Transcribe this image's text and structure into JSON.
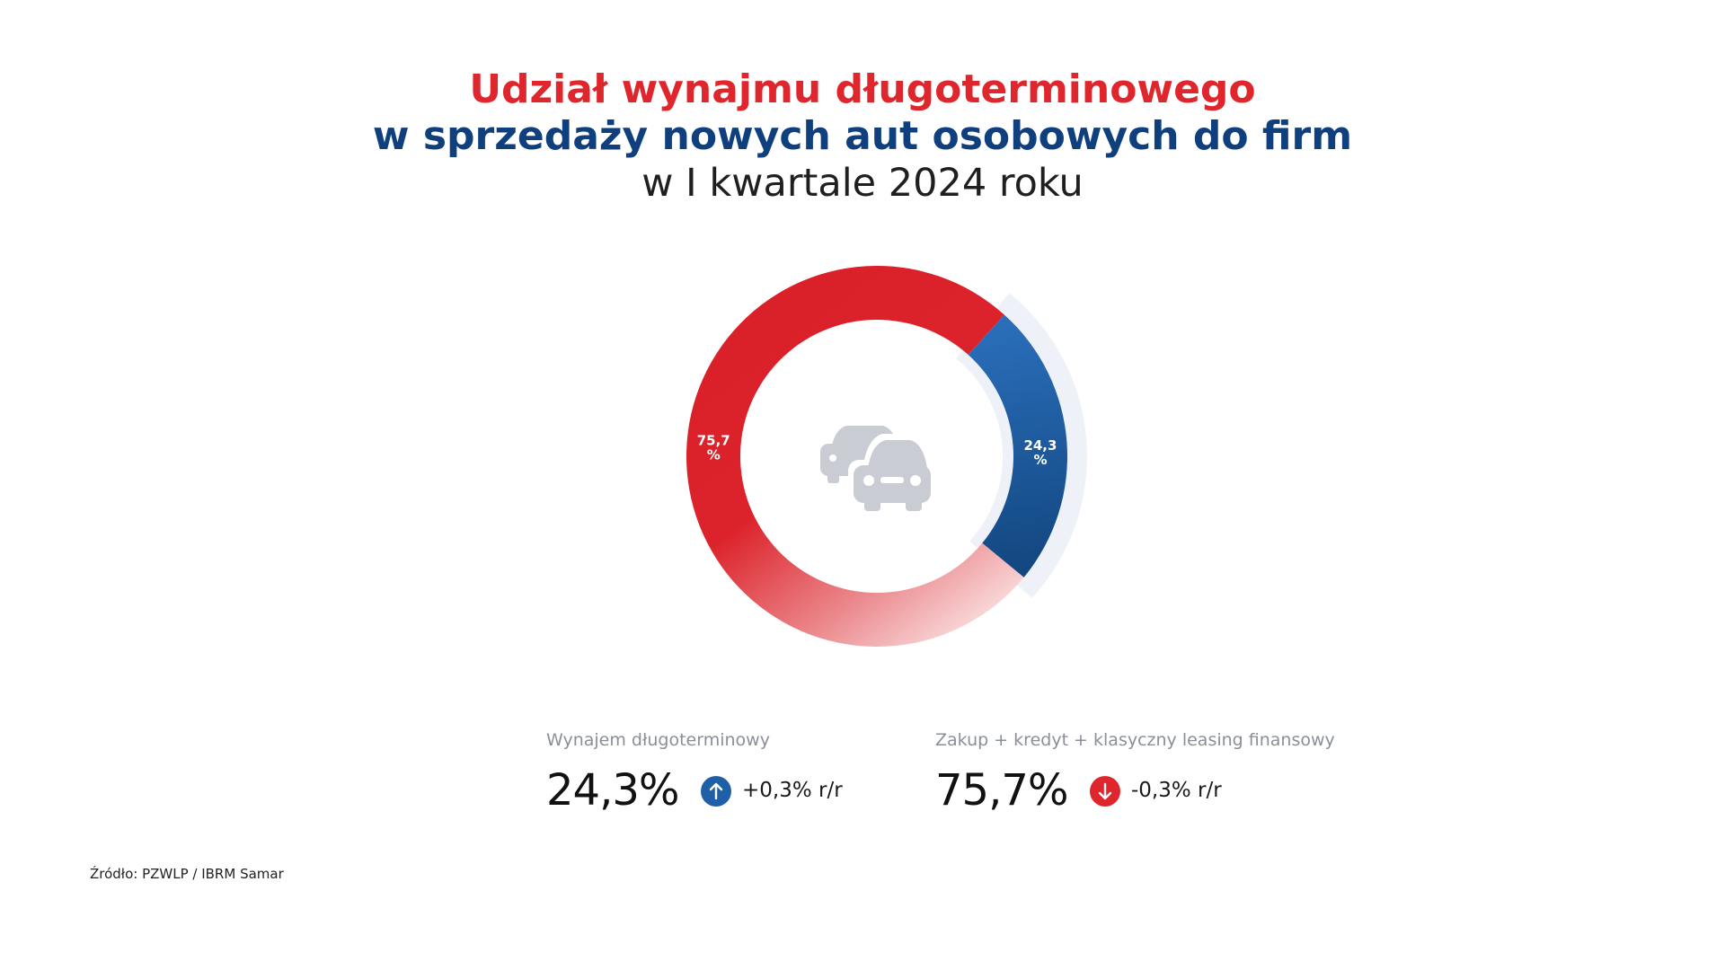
{
  "title": {
    "line1": "Udział wynajmu długoterminowego",
    "line2": "w sprzedaży nowych aut osobowych do firm",
    "line3": "w I kwartale 2024 roku"
  },
  "colors": {
    "red": "#e0262d",
    "blue": "#2a6db8",
    "blue_dark": "#0f3f7c",
    "gray_icon": "#c9ccd3",
    "track": "#eef2f8"
  },
  "chart_data": {
    "type": "pie",
    "variant": "donut",
    "center_icon": "cars-icon",
    "series": [
      {
        "name": "Wynajem długoterminowy",
        "value": 24.3,
        "label_number": "24,3",
        "label_unit": "%",
        "color": "#2a6db8"
      },
      {
        "name": "Zakup + kredyt + klasyczny leasing finansowy",
        "value": 75.7,
        "label_number": "75,7",
        "label_unit": "%",
        "color": "#e0262d"
      }
    ]
  },
  "legend": [
    {
      "label": "Wynajem długoterminowy",
      "value": "24,3%",
      "change": "+0,3% r/r",
      "direction": "up",
      "icon": "arrow-up-icon",
      "color": "#1f5fa8"
    },
    {
      "label": "Zakup + kredyt + klasyczny leasing finansowy",
      "value": "75,7%",
      "change": "-0,3% r/r",
      "direction": "down",
      "icon": "arrow-down-icon",
      "color": "#e0262d"
    }
  ],
  "source": "Źródło: PZWLP / IBRM Samar"
}
